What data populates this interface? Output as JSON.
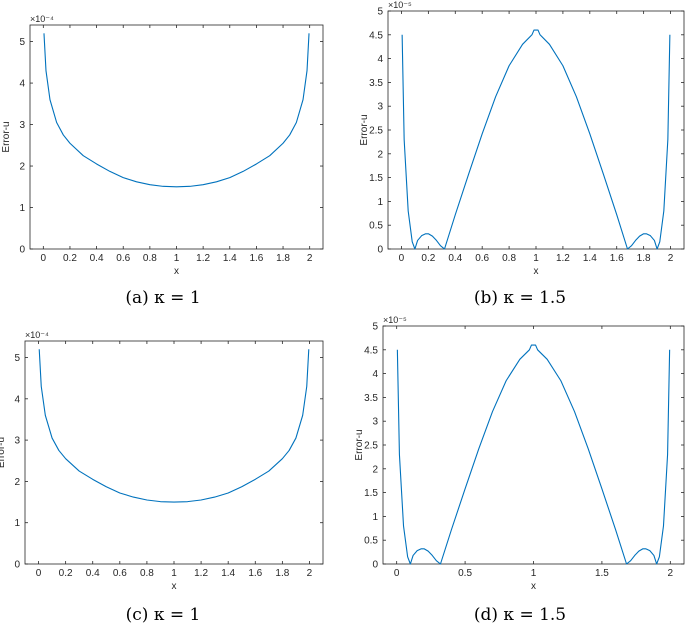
{
  "chart_data": [
    {
      "type": "line",
      "caption": "(a) κ = 1",
      "xlabel": "x",
      "ylabel": "Error-u",
      "exponent": "×10⁻⁴",
      "xlim": [
        -0.1,
        2.1
      ],
      "ylim": [
        0,
        5.4
      ],
      "xticks": [
        0,
        0.2,
        0.4,
        0.6,
        0.8,
        1,
        1.2,
        1.4,
        1.6,
        1.8,
        2
      ],
      "yticks": [
        0,
        1,
        2,
        3,
        4,
        5
      ],
      "xticklabels": [
        "0",
        "0.2",
        "0.4",
        "0.6",
        "0.8",
        "1",
        "1.2",
        "1.4",
        "1.6",
        "1.8",
        "2"
      ],
      "yticklabels": [
        "0",
        "1",
        "2",
        "3",
        "4",
        "5"
      ],
      "color": "#0072BD",
      "series": [
        {
          "x": [
            0.005,
            0.02,
            0.05,
            0.1,
            0.15,
            0.2,
            0.3,
            0.4,
            0.5,
            0.6,
            0.7,
            0.8,
            0.9,
            1.0,
            1.1,
            1.2,
            1.3,
            1.4,
            1.5,
            1.6,
            1.7,
            1.8,
            1.85,
            1.9,
            1.95,
            1.98,
            1.995
          ],
          "y": [
            5.2,
            4.3,
            3.6,
            3.05,
            2.75,
            2.55,
            2.25,
            2.05,
            1.87,
            1.72,
            1.62,
            1.55,
            1.51,
            1.5,
            1.51,
            1.55,
            1.62,
            1.72,
            1.87,
            2.05,
            2.25,
            2.55,
            2.75,
            3.05,
            3.6,
            4.3,
            5.2
          ]
        }
      ]
    },
    {
      "type": "line",
      "caption": "(b) κ = 1.5",
      "xlabel": "x",
      "ylabel": "Error-u",
      "exponent": "×10⁻⁵",
      "xlim": [
        -0.1,
        2.1
      ],
      "ylim": [
        0,
        5
      ],
      "xticks": [
        0,
        0.2,
        0.4,
        0.6,
        0.8,
        1,
        1.2,
        1.4,
        1.6,
        1.8,
        2
      ],
      "yticks": [
        0,
        0.5,
        1,
        1.5,
        2,
        2.5,
        3,
        3.5,
        4,
        4.5,
        5
      ],
      "xticklabels": [
        "0",
        "0.2",
        "0.4",
        "0.6",
        "0.8",
        "1",
        "1.2",
        "1.4",
        "1.6",
        "1.8",
        "2"
      ],
      "yticklabels": [
        "0",
        "0.5",
        "1",
        "1.5",
        "2",
        "2.5",
        "3",
        "3.5",
        "4",
        "4.5",
        "5"
      ],
      "color": "#0072BD",
      "series": [
        {
          "x": [
            0.005,
            0.02,
            0.05,
            0.08,
            0.1,
            0.12,
            0.15,
            0.18,
            0.2,
            0.23,
            0.26,
            0.29,
            0.32,
            0.4,
            0.5,
            0.6,
            0.7,
            0.8,
            0.9,
            0.97,
            0.985,
            1.0,
            1.015,
            1.03,
            1.1,
            1.2,
            1.3,
            1.4,
            1.5,
            1.6,
            1.68,
            1.71,
            1.74,
            1.77,
            1.8,
            1.82,
            1.85,
            1.88,
            1.9,
            1.92,
            1.95,
            1.98,
            1.995
          ],
          "y": [
            4.5,
            2.3,
            0.8,
            0.15,
            0.0,
            0.18,
            0.28,
            0.32,
            0.32,
            0.27,
            0.18,
            0.07,
            0.0,
            0.72,
            1.58,
            2.42,
            3.2,
            3.85,
            4.3,
            4.5,
            4.6,
            4.6,
            4.6,
            4.5,
            4.3,
            3.85,
            3.2,
            2.42,
            1.58,
            0.72,
            0.0,
            0.07,
            0.18,
            0.27,
            0.32,
            0.32,
            0.28,
            0.18,
            0.0,
            0.15,
            0.8,
            2.3,
            4.5
          ]
        }
      ]
    },
    {
      "type": "line",
      "caption": "(c) κ = 1",
      "xlabel": "x",
      "ylabel": "Error-u",
      "exponent": "×10⁻⁴",
      "xlim": [
        -0.1,
        2.1
      ],
      "ylim": [
        0,
        5.4
      ],
      "xticks": [
        0,
        0.2,
        0.4,
        0.6,
        0.8,
        1,
        1.2,
        1.4,
        1.6,
        1.8,
        2
      ],
      "yticks": [
        0,
        1,
        2,
        3,
        4,
        5
      ],
      "xticklabels": [
        "0",
        "0.2",
        "0.4",
        "0.6",
        "0.8",
        "1",
        "1.2",
        "1.4",
        "1.6",
        "1.8",
        "2"
      ],
      "yticklabels": [
        "0",
        "1",
        "2",
        "3",
        "4",
        "5"
      ],
      "color": "#0072BD",
      "series": [
        {
          "x": [
            0.005,
            0.02,
            0.05,
            0.1,
            0.15,
            0.2,
            0.3,
            0.4,
            0.5,
            0.6,
            0.7,
            0.8,
            0.9,
            1.0,
            1.1,
            1.2,
            1.3,
            1.4,
            1.5,
            1.6,
            1.7,
            1.8,
            1.85,
            1.9,
            1.95,
            1.98,
            1.995
          ],
          "y": [
            5.2,
            4.3,
            3.6,
            3.05,
            2.75,
            2.55,
            2.25,
            2.05,
            1.87,
            1.72,
            1.62,
            1.55,
            1.51,
            1.5,
            1.51,
            1.55,
            1.62,
            1.72,
            1.87,
            2.05,
            2.25,
            2.55,
            2.75,
            3.05,
            3.6,
            4.3,
            5.2
          ]
        }
      ]
    },
    {
      "type": "line",
      "caption": "(d) κ = 1.5",
      "xlabel": "x",
      "ylabel": "Error-u",
      "exponent": "×10⁻⁵",
      "xlim": [
        -0.1,
        2.1
      ],
      "ylim": [
        0,
        5
      ],
      "xticks": [
        0,
        0.5,
        1,
        1.5,
        2
      ],
      "yticks": [
        0,
        0.5,
        1,
        1.5,
        2,
        2.5,
        3,
        3.5,
        4,
        4.5,
        5
      ],
      "xticklabels": [
        "0",
        "0.5",
        "1",
        "1.5",
        "2"
      ],
      "yticklabels": [
        "0",
        "0.5",
        "1",
        "1.5",
        "2",
        "2.5",
        "3",
        "3.5",
        "4",
        "4.5",
        "5"
      ],
      "color": "#0072BD",
      "series": [
        {
          "x": [
            0.005,
            0.02,
            0.05,
            0.08,
            0.1,
            0.12,
            0.15,
            0.18,
            0.2,
            0.23,
            0.26,
            0.29,
            0.32,
            0.4,
            0.5,
            0.6,
            0.7,
            0.8,
            0.9,
            0.97,
            0.985,
            1.0,
            1.015,
            1.03,
            1.1,
            1.2,
            1.3,
            1.4,
            1.5,
            1.6,
            1.68,
            1.71,
            1.74,
            1.77,
            1.8,
            1.82,
            1.85,
            1.88,
            1.9,
            1.92,
            1.95,
            1.98,
            1.995
          ],
          "y": [
            4.5,
            2.3,
            0.8,
            0.15,
            0.0,
            0.18,
            0.28,
            0.32,
            0.32,
            0.27,
            0.18,
            0.07,
            0.0,
            0.72,
            1.58,
            2.42,
            3.2,
            3.85,
            4.3,
            4.5,
            4.6,
            4.6,
            4.6,
            4.5,
            4.3,
            3.85,
            3.2,
            2.42,
            1.58,
            0.72,
            0.0,
            0.07,
            0.18,
            0.27,
            0.32,
            0.32,
            0.28,
            0.18,
            0.0,
            0.15,
            0.8,
            2.3,
            4.5
          ]
        }
      ]
    }
  ]
}
